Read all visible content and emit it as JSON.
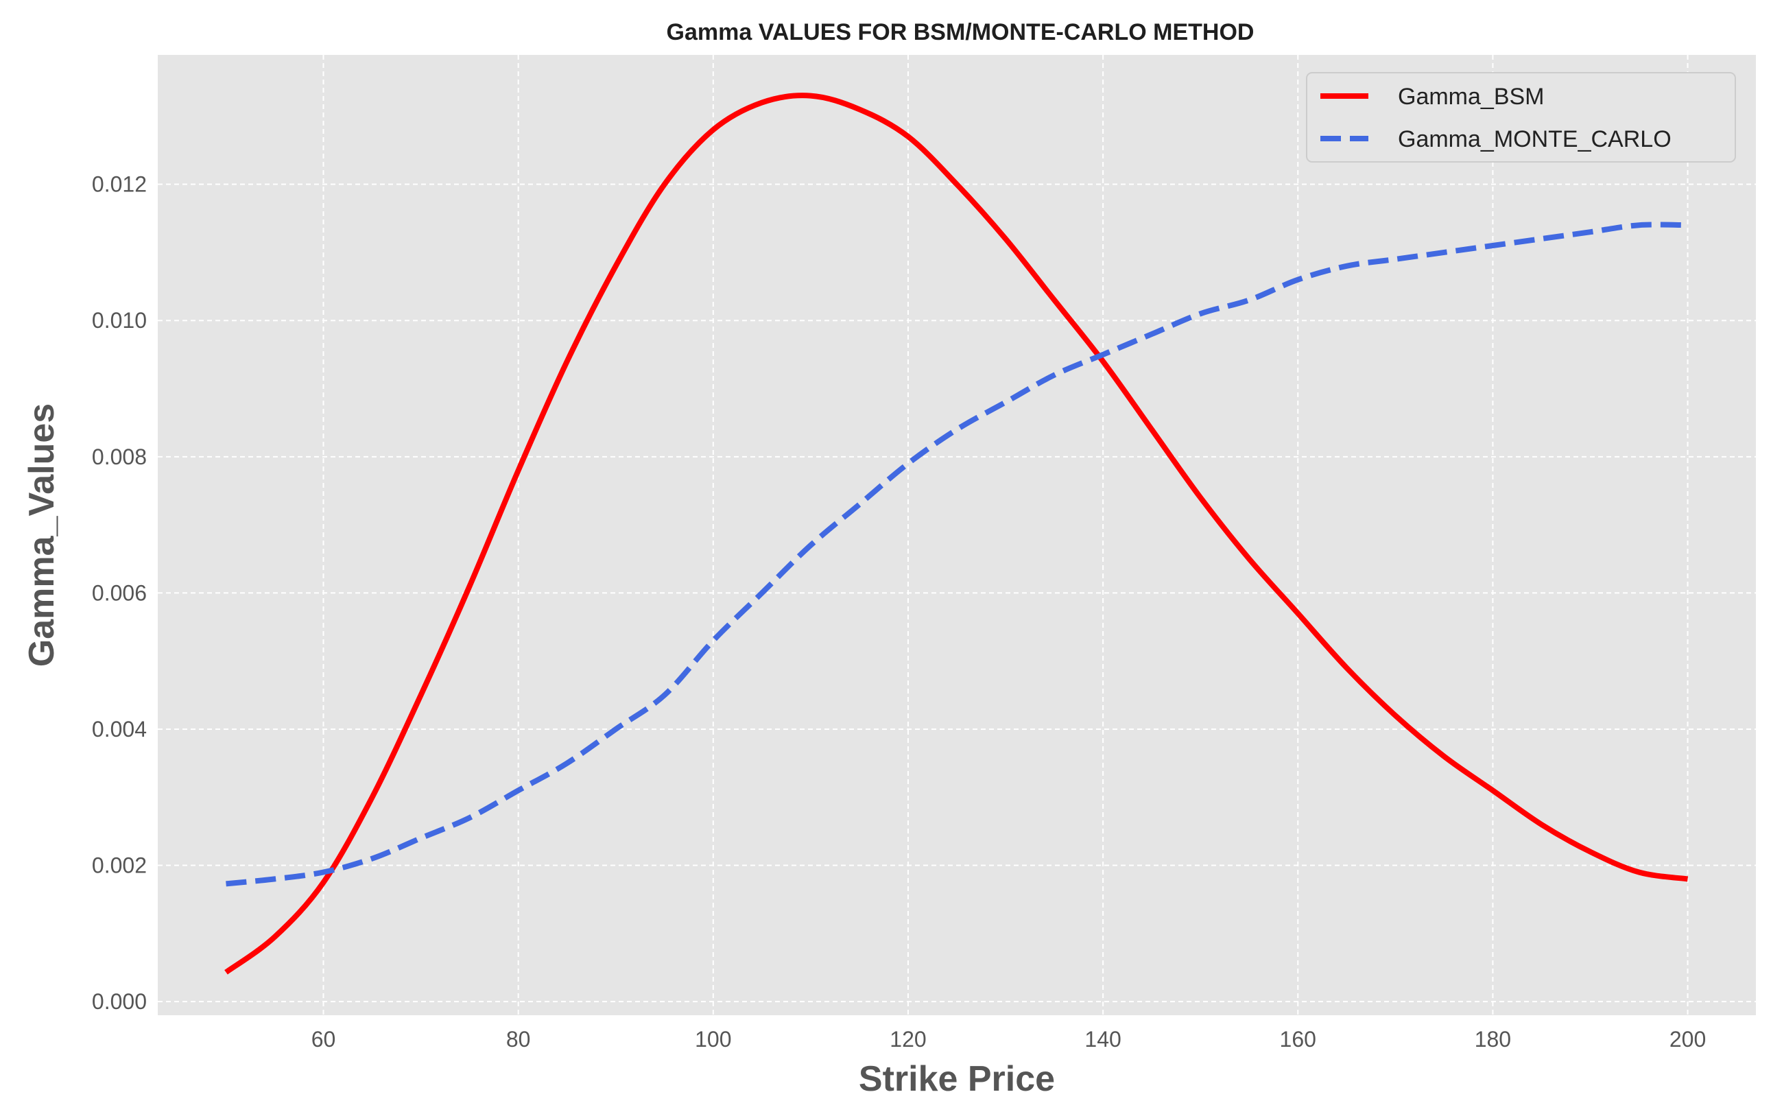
{
  "chart_data": {
    "type": "line",
    "title": "Gamma VALUES FOR BSM/MONTE-CARLO METHOD",
    "xlabel": "Strike Price",
    "ylabel": "Gamma_Values",
    "xlim": [
      43,
      207
    ],
    "ylim": [
      -0.0002,
      0.0139
    ],
    "x_ticks": [
      60,
      80,
      100,
      120,
      140,
      160,
      180,
      200
    ],
    "x_tick_labels": [
      "60",
      "80",
      "100",
      "120",
      "140",
      "160",
      "180",
      "200"
    ],
    "y_ticks": [
      0.0,
      0.002,
      0.004,
      0.006,
      0.008,
      0.01,
      0.012
    ],
    "y_tick_labels": [
      "0.000",
      "0.002",
      "0.004",
      "0.006",
      "0.008",
      "0.010",
      "0.012"
    ],
    "grid": true,
    "legend_position": "top-right",
    "background_color": "#e5e5e5",
    "x": [
      50,
      55,
      60,
      65,
      70,
      75,
      80,
      85,
      90,
      95,
      100,
      105,
      110,
      115,
      120,
      125,
      130,
      135,
      140,
      145,
      150,
      155,
      160,
      165,
      170,
      175,
      180,
      185,
      190,
      195,
      200
    ],
    "series": [
      {
        "name": "Gamma_BSM",
        "color": "#ff0000",
        "style": "solid",
        "values": [
          0.00043,
          0.00095,
          0.00175,
          0.003,
          0.0045,
          0.0061,
          0.0078,
          0.0094,
          0.0108,
          0.012,
          0.0128,
          0.0132,
          0.0133,
          0.0131,
          0.0127,
          0.012,
          0.0112,
          0.0103,
          0.0094,
          0.0084,
          0.0074,
          0.0065,
          0.0057,
          0.0049,
          0.0042,
          0.0036,
          0.0031,
          0.0026,
          0.0022,
          0.0019,
          0.0018
        ]
      },
      {
        "name": "Gamma_MONTE_CARLO",
        "color": "#4169e1",
        "style": "dashed",
        "values": [
          0.00173,
          0.0018,
          0.0019,
          0.0021,
          0.0024,
          0.0027,
          0.0031,
          0.0035,
          0.004,
          0.0045,
          0.0053,
          0.006,
          0.0067,
          0.0073,
          0.0079,
          0.0084,
          0.0088,
          0.0092,
          0.0095,
          0.0098,
          0.0101,
          0.0103,
          0.0106,
          0.0108,
          0.0109,
          0.011,
          0.0111,
          0.0112,
          0.0113,
          0.0114,
          0.0114
        ]
      }
    ]
  }
}
